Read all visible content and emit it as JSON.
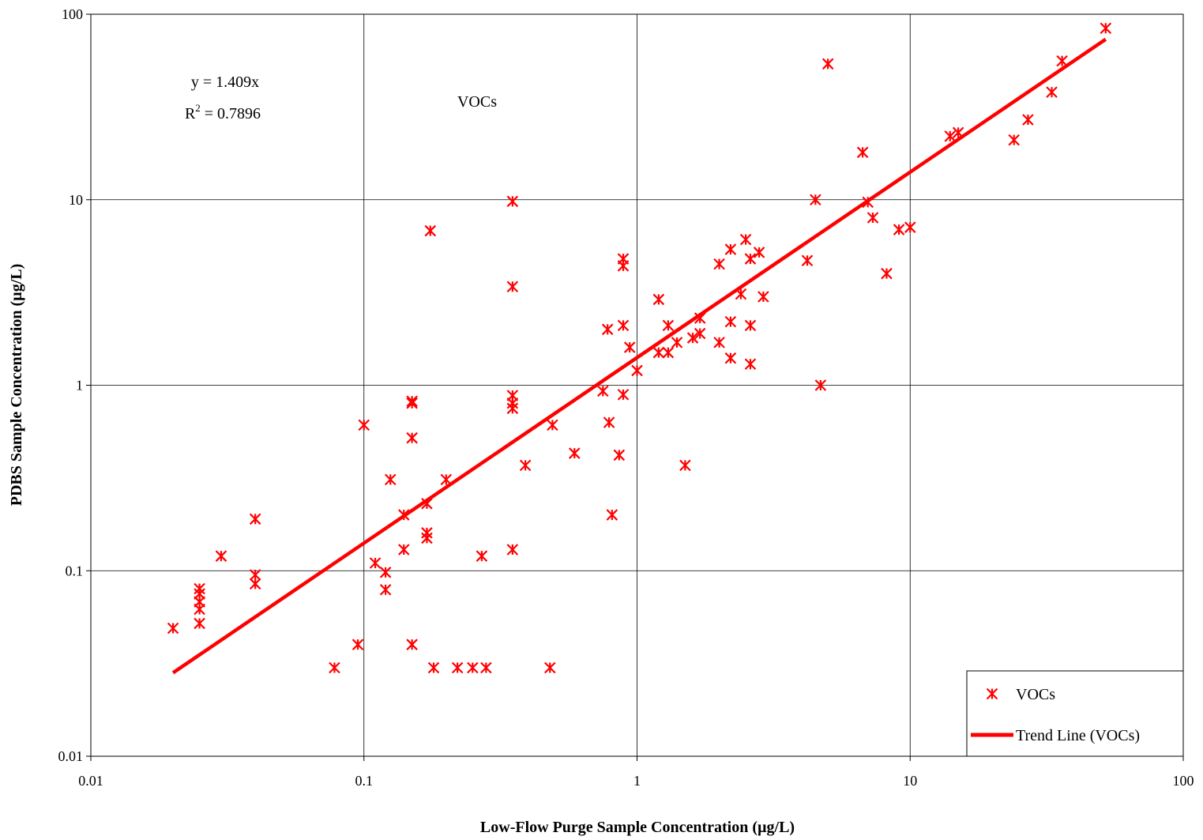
{
  "chart_data": {
    "type": "scatter",
    "title": "",
    "xlabel": "Low-Flow Purge Sample Concentration (µg/L)",
    "ylabel": "PDBS Sample Concentration (µg/L)",
    "xscale": "log",
    "yscale": "log",
    "xlim": [
      0.01,
      100
    ],
    "ylim": [
      0.01,
      100
    ],
    "grid": true,
    "x_tick_labels": [
      "0.01",
      "0.1",
      "1",
      "10",
      "100"
    ],
    "y_tick_labels": [
      "0.01",
      "0.1",
      "1",
      "10",
      "100"
    ],
    "colors": {
      "series": "#ff0000",
      "grid": "#000000"
    },
    "annotations": {
      "equation": "y = 1.409x",
      "r2_prefix": "R",
      "r2_exponent": "2",
      "r2_value": " = 0.7896",
      "label": "VOCs"
    },
    "legend": {
      "position": "bottom-right",
      "items": [
        {
          "label": "VOCs",
          "type": "marker"
        },
        {
          "label": "Trend Line (VOCs)",
          "type": "line"
        }
      ]
    },
    "series": [
      {
        "name": "VOCs",
        "marker": "asterisk",
        "points": [
          [
            0.02,
            0.049
          ],
          [
            0.025,
            0.08
          ],
          [
            0.025,
            0.075
          ],
          [
            0.025,
            0.068
          ],
          [
            0.025,
            0.062
          ],
          [
            0.025,
            0.052
          ],
          [
            0.03,
            0.12
          ],
          [
            0.04,
            0.19
          ],
          [
            0.04,
            0.095
          ],
          [
            0.04,
            0.085
          ],
          [
            0.078,
            0.03
          ],
          [
            0.095,
            0.04
          ],
          [
            0.1,
            0.61
          ],
          [
            0.11,
            0.11
          ],
          [
            0.12,
            0.098
          ],
          [
            0.12,
            0.079
          ],
          [
            0.125,
            0.31
          ],
          [
            0.14,
            0.2
          ],
          [
            0.14,
            0.13
          ],
          [
            0.15,
            0.82
          ],
          [
            0.15,
            0.8
          ],
          [
            0.15,
            0.52
          ],
          [
            0.15,
            0.04
          ],
          [
            0.17,
            0.23
          ],
          [
            0.17,
            0.16
          ],
          [
            0.17,
            0.15
          ],
          [
            0.175,
            6.8
          ],
          [
            0.18,
            0.03
          ],
          [
            0.2,
            0.31
          ],
          [
            0.22,
            0.03
          ],
          [
            0.25,
            0.03
          ],
          [
            0.27,
            0.12
          ],
          [
            0.28,
            0.03
          ],
          [
            0.35,
            9.8
          ],
          [
            0.35,
            3.4
          ],
          [
            0.35,
            0.88
          ],
          [
            0.35,
            0.8
          ],
          [
            0.35,
            0.75
          ],
          [
            0.35,
            0.13
          ],
          [
            0.39,
            0.37
          ],
          [
            0.48,
            0.03
          ],
          [
            0.49,
            0.61
          ],
          [
            0.59,
            0.43
          ],
          [
            0.75,
            0.93
          ],
          [
            0.78,
            2.0
          ],
          [
            0.79,
            0.63
          ],
          [
            0.81,
            0.2
          ],
          [
            0.86,
            0.42
          ],
          [
            0.89,
            4.8
          ],
          [
            0.89,
            4.4
          ],
          [
            0.89,
            2.1
          ],
          [
            0.89,
            0.89
          ],
          [
            0.94,
            1.6
          ],
          [
            1.0,
            1.2
          ],
          [
            1.2,
            2.9
          ],
          [
            1.2,
            1.5
          ],
          [
            1.3,
            2.1
          ],
          [
            1.3,
            1.5
          ],
          [
            1.4,
            1.7
          ],
          [
            1.5,
            0.37
          ],
          [
            1.6,
            1.8
          ],
          [
            1.7,
            2.3
          ],
          [
            1.7,
            1.9
          ],
          [
            2.0,
            4.5
          ],
          [
            2.0,
            1.7
          ],
          [
            2.2,
            5.4
          ],
          [
            2.2,
            2.2
          ],
          [
            2.2,
            1.4
          ],
          [
            2.4,
            3.1
          ],
          [
            2.5,
            6.1
          ],
          [
            2.6,
            4.8
          ],
          [
            2.6,
            2.1
          ],
          [
            2.6,
            1.3
          ],
          [
            2.8,
            5.2
          ],
          [
            2.9,
            3.0
          ],
          [
            4.2,
            4.7
          ],
          [
            4.5,
            10
          ],
          [
            4.7,
            1.0
          ],
          [
            5.0,
            54
          ],
          [
            6.7,
            18
          ],
          [
            7.0,
            9.7
          ],
          [
            7.3,
            8.0
          ],
          [
            8.2,
            4.0
          ],
          [
            9.1,
            6.9
          ],
          [
            10.0,
            7.1
          ],
          [
            14,
            22
          ],
          [
            15,
            23
          ],
          [
            24,
            21
          ],
          [
            27,
            27
          ],
          [
            33,
            38
          ],
          [
            36,
            56
          ],
          [
            52,
            84
          ]
        ]
      },
      {
        "name": "Trend Line (VOCs)",
        "type": "line",
        "slope": 1.409,
        "x_range": [
          0.02,
          52
        ]
      }
    ]
  }
}
